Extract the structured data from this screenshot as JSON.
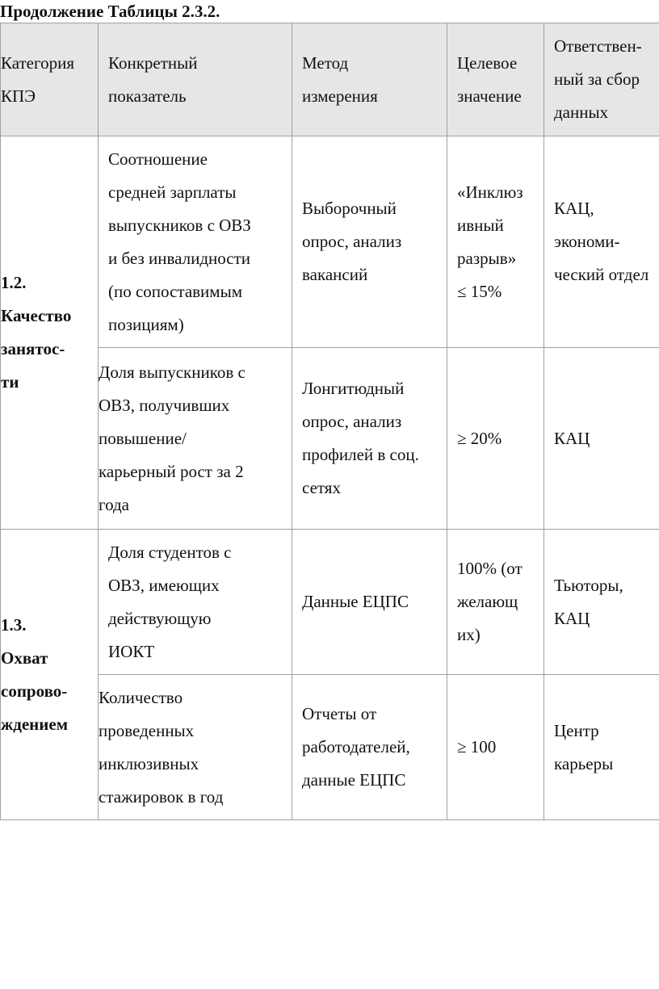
{
  "caption": "Продолжение Таблицы 2.3.2.",
  "header": [
    "Категория\nКПЭ",
    "Конкретный\nпоказатель",
    "Метод\nизмерения",
    "Целевое\nзначение",
    "Ответствен-\nный за сбор\nданных"
  ],
  "groups": [
    {
      "category": "1.2.\nКачество\nзанятос-\nти",
      "rows": [
        {
          "indicator": "Соотношение\nсредней зарплаты\nвыпускников с ОВЗ\nи без инвалидности\n(по сопоставимым\nпозициям)",
          "method": "Выборочный\nопрос, анализ\nвакансий",
          "target": "«Инклюз\nивный\nразрыв»\n≤ 15%",
          "responsible": "КАЦ,\nэкономи-\nческий отдел"
        },
        {
          "indicator": "Доля выпускников с\nОВЗ, получивших\nповышение/\nкарьерный рост за 2\nгода",
          "method": "Лонгитюдный\nопрос, анализ\nпрофилей в соц.\nсетях",
          "target": "≥ 20%",
          "responsible": "КАЦ"
        }
      ]
    },
    {
      "category": "1.3.\nОхват\nсопрово-\nждением",
      "rows": [
        {
          "indicator": "Доля студентов с\nОВЗ, имеющих\nдействующую\nИОКТ",
          "method": "Данные ЕЦПС",
          "target": "100% (от\nжелающ\nих)",
          "responsible": "Тьюторы,\nКАЦ"
        },
        {
          "indicator": "Количество\nпроведенных\nинклюзивных\nстажировок в год",
          "method": "Отчеты от\nработодателей,\nданные ЕЦПС",
          "target": "≥ 100",
          "responsible": "Центр\nкарьеры"
        }
      ]
    }
  ]
}
